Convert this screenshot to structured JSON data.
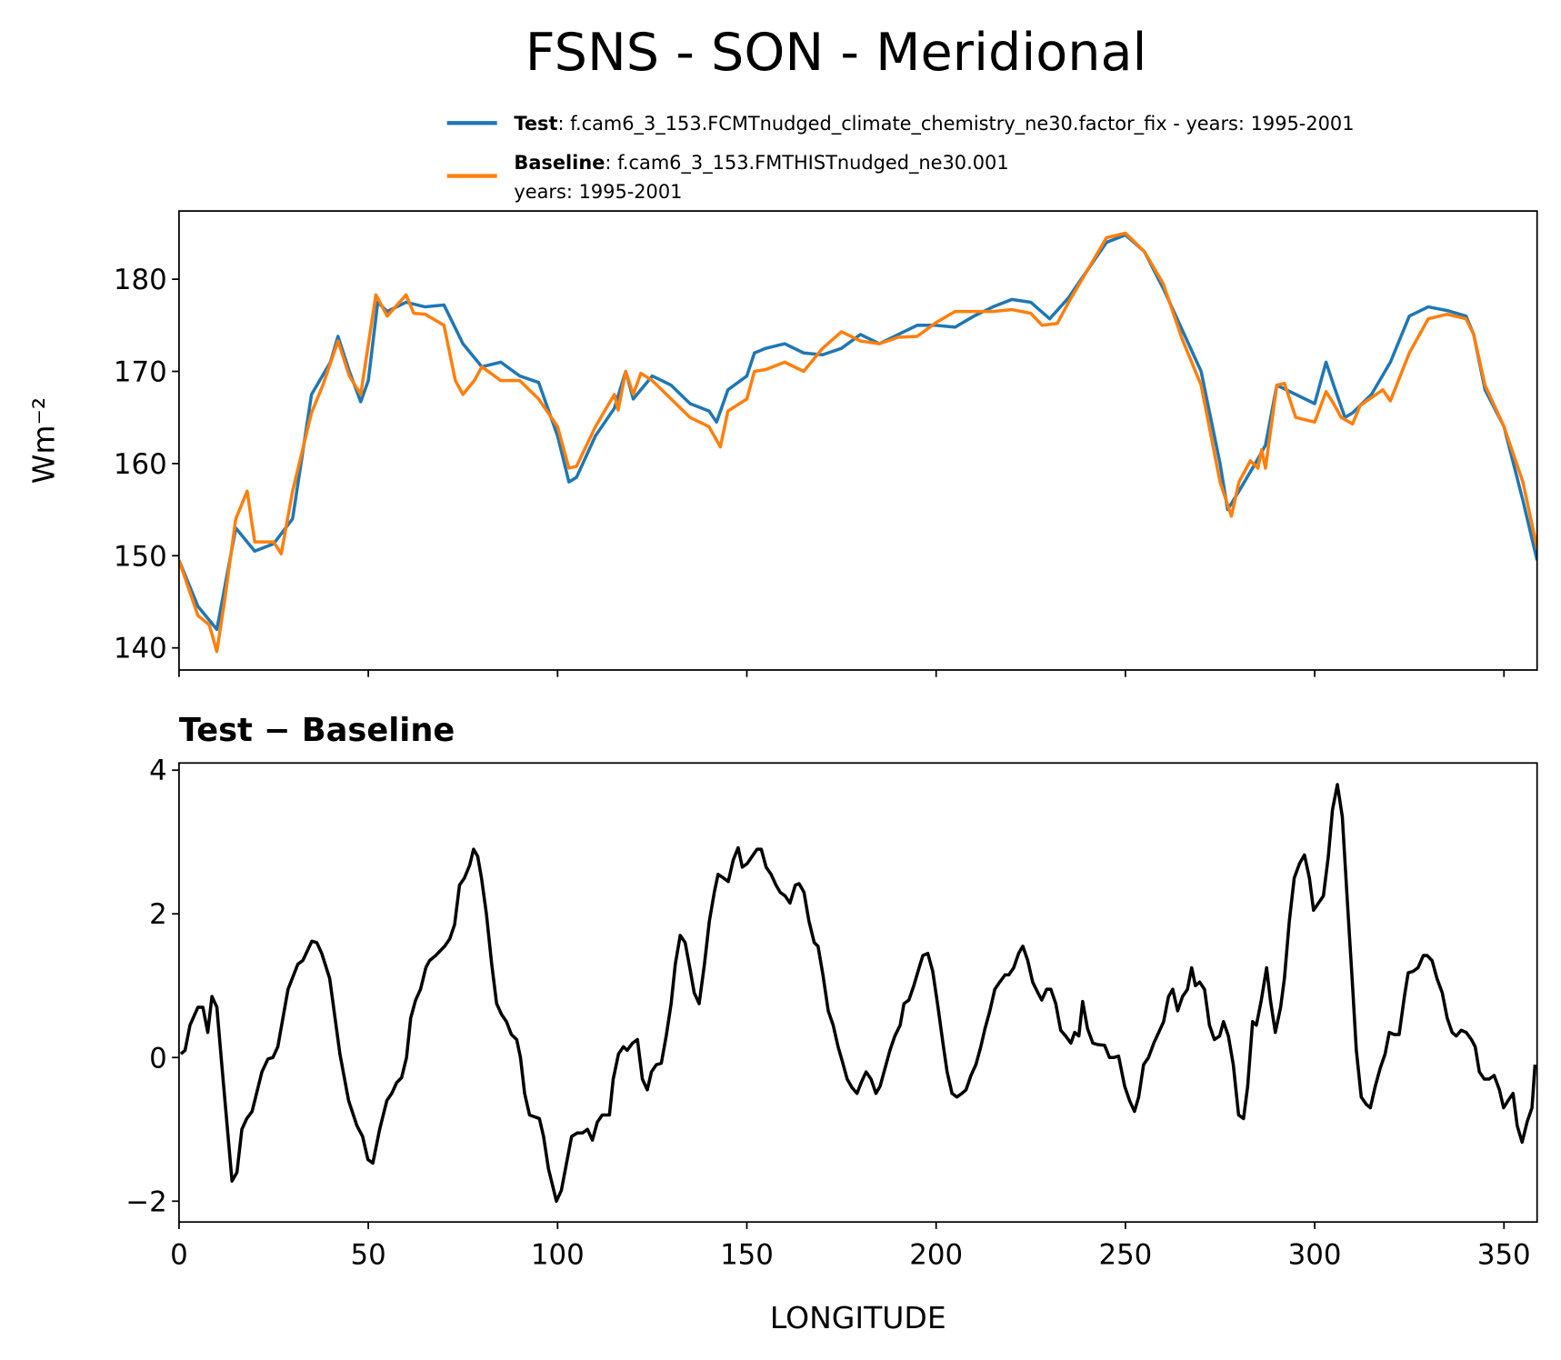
{
  "chart_data": [
    {
      "type": "line",
      "title": "FSNS - SON - Meridional",
      "ylabel": "Wm⁻²",
      "xlim": [
        0,
        358.75
      ],
      "xticks": [
        0,
        50,
        100,
        150,
        200,
        250,
        300,
        350
      ],
      "ylim": [
        137.6,
        187.4
      ],
      "yticks": [
        140,
        150,
        160,
        170,
        180
      ],
      "series": [
        {
          "name": "Test",
          "label": [
            ": f.cam6_3_153.FCMTnudged_climate_chemistry_ne30.factor_fix - years: 1995-2001"
          ],
          "color": "#1f77b4",
          "x": [
            0,
            5,
            10,
            15,
            20,
            25,
            30,
            35,
            40,
            42,
            45,
            48,
            50,
            52.5,
            55,
            60,
            65,
            70,
            75,
            80,
            85,
            90,
            95,
            100,
            103,
            105,
            110,
            115,
            118,
            120,
            125,
            130,
            135,
            140,
            142,
            145,
            150,
            152,
            155,
            160,
            165,
            170,
            175,
            180,
            185,
            190,
            195,
            200,
            205,
            210,
            215,
            220,
            225,
            230,
            235,
            240,
            245,
            250,
            255,
            260,
            265,
            270,
            275,
            277,
            280,
            285,
            287,
            290,
            295,
            300,
            303,
            305,
            308,
            310,
            315,
            320,
            325,
            330,
            335,
            340,
            342,
            345,
            350,
            355,
            358.75
          ],
          "values": [
            149.5,
            144.5,
            142,
            153,
            150.5,
            151.3,
            154,
            167.5,
            171,
            173.8,
            170,
            166.7,
            169,
            177.5,
            176.5,
            177.5,
            177,
            177.2,
            173,
            170.5,
            171,
            169.5,
            168.8,
            163,
            158,
            158.5,
            163,
            166,
            170,
            167,
            169.5,
            168.5,
            166.5,
            165.7,
            164.5,
            168,
            169.5,
            172,
            172.5,
            173,
            172,
            171.8,
            172.5,
            174,
            173,
            174,
            175,
            175,
            174.8,
            176,
            177,
            177.8,
            177.5,
            175.7,
            178,
            181,
            184,
            184.8,
            183,
            179,
            174.5,
            170,
            160,
            155,
            157,
            160.5,
            162,
            168.5,
            167.5,
            166.5,
            171,
            168.5,
            165,
            165.5,
            167.5,
            171,
            176,
            177,
            176.6,
            176,
            174,
            168,
            164,
            156,
            149.5
          ]
        },
        {
          "name": "Baseline",
          "label": [
            ": f.cam6_3_153.FMTHISTnudged_ne30.001",
            "years: 1995-2001"
          ],
          "color": "#ff7f0e",
          "x": [
            0,
            5,
            8,
            10,
            12,
            15,
            18,
            20,
            25,
            27,
            30,
            35,
            38,
            42,
            45,
            48,
            52,
            55,
            60,
            62,
            65,
            70,
            73,
            75,
            78,
            80,
            85,
            90,
            95,
            100,
            103,
            105,
            110,
            115,
            116,
            118,
            120,
            122,
            125,
            130,
            135,
            140,
            143,
            145,
            150,
            152,
            155,
            160,
            165,
            170,
            175,
            180,
            185,
            190,
            195,
            200,
            205,
            210,
            215,
            220,
            225,
            228,
            232,
            235,
            240,
            245,
            250,
            255,
            260,
            265,
            270,
            275,
            278,
            280,
            283,
            285,
            286,
            287,
            290,
            292,
            295,
            300,
            303,
            305,
            307,
            310,
            312,
            318,
            320,
            325,
            330,
            335,
            340,
            342,
            345,
            350,
            355,
            358.75
          ],
          "values": [
            149.5,
            143.5,
            142.5,
            139.6,
            145,
            154,
            157,
            151.5,
            151.5,
            150.2,
            157,
            165.5,
            168.5,
            173.3,
            169.5,
            167.5,
            178.3,
            176,
            178.3,
            176.3,
            176.2,
            175,
            169,
            167.5,
            169,
            170.5,
            169,
            169,
            167,
            164,
            159.5,
            159.7,
            164,
            167.5,
            165.8,
            170,
            167.5,
            169.8,
            169,
            167,
            165,
            164,
            161.8,
            165.7,
            167,
            170,
            170.2,
            171,
            170,
            172.5,
            174.3,
            173.3,
            173,
            173.7,
            173.8,
            175.3,
            176.5,
            176.5,
            176.5,
            176.7,
            176.3,
            175,
            175.2,
            177.5,
            181,
            184.5,
            185,
            183,
            179.5,
            173.5,
            168.5,
            158,
            154.3,
            158,
            160.3,
            159.5,
            161.5,
            159.5,
            168.5,
            168.7,
            165,
            164.5,
            167.8,
            166.5,
            165,
            164.3,
            166.3,
            168,
            166.8,
            172,
            175.7,
            176.2,
            175.7,
            174,
            168.5,
            164,
            158,
            150.8
          ]
        }
      ]
    },
    {
      "type": "line",
      "subtitle": "Test − Baseline",
      "xlabel": "LONGITUDE",
      "xlim": [
        0,
        358.75
      ],
      "xticks": [
        0,
        50,
        100,
        150,
        200,
        250,
        300,
        350
      ],
      "ylim": [
        -2.29,
        4.1
      ],
      "yticks": [
        {
          "value": -2,
          "label": "−2"
        },
        0,
        2,
        4
      ],
      "series": [
        {
          "color": "#000000",
          "x": [
            0.5,
            1.6,
            2.9,
            5,
            6.3,
            7.6,
            8.7,
            10,
            11.3,
            14,
            15.3,
            16.6,
            17.9,
            19.3,
            21.9,
            23.5,
            24.8,
            26.1,
            28.8,
            31.4,
            32.7,
            35.1,
            36.4,
            37.7,
            39.8,
            42.5,
            44.8,
            47,
            48.5,
            49.9,
            51.2,
            53,
            54.9,
            56.2,
            57.5,
            58.8,
            60.1,
            61.2,
            62.5,
            63.8,
            65.2,
            66.2,
            67.8,
            70.2,
            71.5,
            72.8,
            74.1,
            75.4,
            76.8,
            77.8,
            78.9,
            79.9,
            81.2,
            82.6,
            83.9,
            85.2,
            86.5,
            87.8,
            89.2,
            90.2,
            91.3,
            92.6,
            95.2,
            96.3,
            97.6,
            99.7,
            101,
            103.7,
            105.2,
            106.6,
            107.9,
            109.2,
            110.5,
            111.8,
            113.7,
            114.7,
            116.1,
            117.4,
            118.4,
            119.8,
            121.1,
            122.4,
            123.7,
            124.8,
            126.1,
            127.4,
            128.7,
            130,
            131.1,
            132.4,
            133.7,
            135.1,
            136.1,
            137.4,
            138.8,
            140.1,
            141.4,
            142.4,
            143.8,
            145.1,
            146.4,
            147.7,
            148.8,
            150.1,
            151.4,
            152.7,
            153.8,
            155.1,
            156.4,
            157.7,
            158.8,
            160.1,
            161.4,
            162.8,
            163.8,
            165.1,
            166.4,
            167.8,
            168.8,
            170.1,
            171.5,
            172.8,
            174.1,
            175.2,
            176.5,
            177.8,
            179.1,
            180.2,
            181.5,
            182.8,
            184.1,
            185.2,
            186.5,
            187.8,
            189.1,
            190.5,
            191.5,
            192.8,
            194.1,
            195.5,
            196.5,
            197.8,
            199.1,
            200.5,
            201.8,
            202.9,
            204.2,
            205.5,
            206.8,
            207.9,
            209.2,
            210.5,
            211.8,
            212.9,
            214.2,
            215.5,
            216.8,
            218.2,
            219.2,
            220.5,
            221.8,
            222.9,
            224.2,
            225.5,
            226.9,
            227.9,
            229.2,
            230.3,
            231.6,
            232.9,
            234.2,
            235.6,
            236.6,
            237.7,
            238.7,
            240,
            241.4,
            242.7,
            244.5,
            245.8,
            246.9,
            248.2,
            249.8,
            251.1,
            252.4,
            253.5,
            254.8,
            256.1,
            257.5,
            258.8,
            260.1,
            261.4,
            262.5,
            263.8,
            265.1,
            266.4,
            267.5,
            268.5,
            269.6,
            270.9,
            272.2,
            273.5,
            274.9,
            275.9,
            277.2,
            278.5,
            279.9,
            281.2,
            282.3,
            283.6,
            284.6,
            285.9,
            287.3,
            288.3,
            289.6,
            291,
            292,
            293.3,
            294.6,
            296,
            297.3,
            298.6,
            299.7,
            301,
            302.3,
            303.6,
            304.7,
            306,
            307.3,
            308.6,
            310,
            311,
            312.3,
            313.6,
            314.7,
            316,
            317.3,
            318.6,
            319.7,
            321,
            322.3,
            323.7,
            324.7,
            326,
            327.3,
            328.7,
            329.7,
            331,
            332.3,
            333.7,
            335,
            336.3,
            337.4,
            338.7,
            340,
            341.4,
            342.4,
            343.5,
            344.8,
            346.1,
            347.4,
            348.8,
            349.9,
            351.1,
            352.4,
            353.5,
            354.8,
            356.1,
            357.4,
            358.2
          ],
          "values": [
            0.05,
            0.1,
            0.45,
            0.7,
            0.7,
            0.35,
            0.85,
            0.7,
            -0.1,
            -1.72,
            -1.6,
            -1,
            -0.85,
            -0.75,
            -0.2,
            -0.02,
            0,
            0.15,
            0.95,
            1.3,
            1.35,
            1.62,
            1.6,
            1.45,
            1.1,
            0.05,
            -0.6,
            -0.95,
            -1.1,
            -1.42,
            -1.47,
            -1,
            -0.6,
            -0.5,
            -0.35,
            -0.28,
            0,
            0.55,
            0.8,
            0.95,
            1.25,
            1.35,
            1.42,
            1.55,
            1.65,
            1.85,
            2.4,
            2.5,
            2.68,
            2.9,
            2.8,
            2.5,
            2,
            1.3,
            0.75,
            0.6,
            0.5,
            0.32,
            0.25,
            0,
            -0.5,
            -0.8,
            -0.85,
            -1.1,
            -1.55,
            -2,
            -1.85,
            -1.1,
            -1.05,
            -1.05,
            -1,
            -1.15,
            -0.9,
            -0.8,
            -0.8,
            -0.3,
            0.05,
            0.15,
            0.1,
            0.2,
            0.25,
            -0.3,
            -0.45,
            -0.2,
            -0.1,
            -0.08,
            0.3,
            0.75,
            1.3,
            1.7,
            1.6,
            1.2,
            0.9,
            0.75,
            1.3,
            1.9,
            2.3,
            2.55,
            2.5,
            2.45,
            2.75,
            2.92,
            2.65,
            2.7,
            2.8,
            2.9,
            2.9,
            2.65,
            2.55,
            2.4,
            2.3,
            2.25,
            2.15,
            2.4,
            2.42,
            2.3,
            1.9,
            1.6,
            1.55,
            1.15,
            0.65,
            0.45,
            0.15,
            -0.05,
            -0.3,
            -0.42,
            -0.5,
            -0.35,
            -0.2,
            -0.3,
            -0.5,
            -0.4,
            -0.15,
            0.1,
            0.3,
            0.45,
            0.75,
            0.8,
            1,
            1.25,
            1.42,
            1.45,
            1.2,
            0.7,
            0.2,
            -0.2,
            -0.5,
            -0.55,
            -0.5,
            -0.45,
            -0.25,
            -0.1,
            0.15,
            0.4,
            0.65,
            0.95,
            1.05,
            1.15,
            1.15,
            1.25,
            1.45,
            1.55,
            1.35,
            1.05,
            0.9,
            0.8,
            0.95,
            0.95,
            0.75,
            0.38,
            0.3,
            0.2,
            0.35,
            0.3,
            0.78,
            0.4,
            0.2,
            0.18,
            0.17,
            0,
            0,
            0.02,
            -0.4,
            -0.6,
            -0.75,
            -0.55,
            -0.1,
            0,
            0.2,
            0.35,
            0.5,
            0.85,
            0.95,
            0.65,
            0.85,
            0.95,
            1.25,
            1,
            1.05,
            0.95,
            0.45,
            0.25,
            0.3,
            0.5,
            0.3,
            -0.1,
            -0.8,
            -0.85,
            -0.4,
            0.5,
            0.45,
            0.8,
            1.25,
            0.8,
            0.35,
            0.7,
            1.1,
            1.9,
            2.5,
            2.7,
            2.82,
            2.5,
            2.05,
            2.15,
            2.25,
            2.8,
            3.45,
            3.8,
            3.35,
            2.2,
            1,
            0.1,
            -0.55,
            -0.65,
            -0.7,
            -0.4,
            -0.15,
            0.05,
            0.35,
            0.32,
            0.32,
            0.85,
            1.18,
            1.2,
            1.25,
            1.42,
            1.42,
            1.35,
            1.1,
            0.9,
            0.55,
            0.35,
            0.3,
            0.38,
            0.35,
            0.25,
            0.15,
            -0.2,
            -0.3,
            -0.3,
            -0.25,
            -0.45,
            -0.7,
            -0.6,
            -0.5,
            -0.95,
            -1.18,
            -0.9,
            -0.7,
            -0.1
          ]
        }
      ]
    }
  ]
}
